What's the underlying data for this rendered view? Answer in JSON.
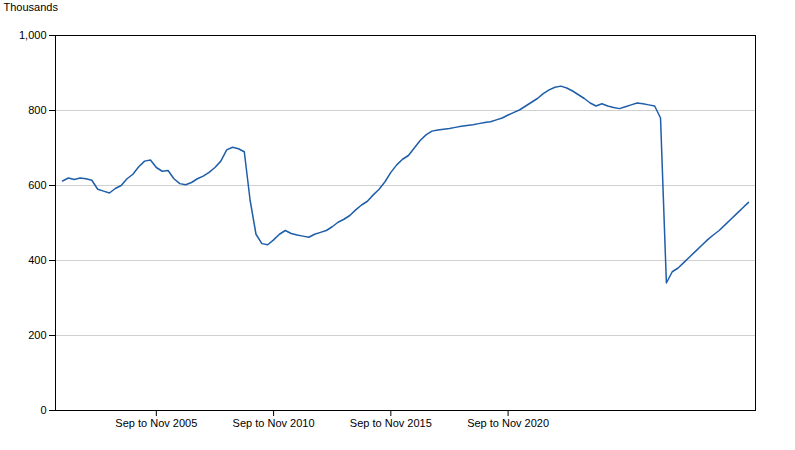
{
  "chart_data": {
    "type": "line",
    "ylabel": "Thousands",
    "color": "#1f5ea8",
    "grid": "y",
    "xlim": [
      2001.45,
      2031.3
    ],
    "xticks": [
      {
        "value": 2005.75,
        "label": "Sep to Nov 2005"
      },
      {
        "value": 2010.75,
        "label": "Sep to Nov 2010"
      },
      {
        "value": 2015.75,
        "label": "Sep to Nov 2015"
      },
      {
        "value": 2020.75,
        "label": "Sep to Nov 2020"
      }
    ],
    "ylim": [
      0,
      1000
    ],
    "yticks": [
      0,
      200,
      400,
      600,
      800,
      {
        "value": 1000,
        "label": "1,000"
      }
    ],
    "x": [
      2001.75,
      2002,
      2002.25,
      2002.5,
      2002.75,
      2003,
      2003.25,
      2003.5,
      2003.75,
      2004,
      2004.25,
      2004.5,
      2004.75,
      2005,
      2005.25,
      2005.5,
      2005.75,
      2006,
      2006.25,
      2006.5,
      2006.75,
      2007,
      2007.25,
      2007.5,
      2007.75,
      2008,
      2008.25,
      2008.5,
      2008.75,
      2009,
      2009.25,
      2009.5,
      2009.75,
      2010,
      2010.25,
      2010.5,
      2010.75,
      2011,
      2011.25,
      2011.5,
      2011.75,
      2012,
      2012.25,
      2012.5,
      2012.75,
      2013,
      2013.25,
      2013.5,
      2013.75,
      2014,
      2014.25,
      2014.5,
      2014.75,
      2015,
      2015.25,
      2015.5,
      2015.75,
      2016,
      2016.25,
      2016.5,
      2016.75,
      2017,
      2017.25,
      2017.5,
      2017.75,
      2018,
      2018.25,
      2018.5,
      2018.75,
      2019,
      2019.25,
      2019.5,
      2019.75,
      2020,
      2020.25,
      2020.5,
      2020.75,
      2021,
      2021.25,
      2021.5,
      2021.75,
      2022,
      2022.25,
      2022.5,
      2022.75,
      2023,
      2023.25,
      2023.5,
      2023.75,
      2024,
      2024.25,
      2024.5,
      2024.75,
      2025,
      2025.25,
      2025.5,
      2025.75,
      2026,
      2026.25,
      2026.5,
      2026.75,
      2027,
      2027.25,
      2027.5,
      2027.75,
      2028,
      2028.25,
      2028.5,
      2028.75,
      2029,
      2029.25,
      2029.5,
      2029.75,
      2030,
      2030.25,
      2030.5,
      2030.75,
      2031
    ],
    "values": [
      612,
      620,
      616,
      620,
      618,
      614,
      590,
      585,
      580,
      592,
      600,
      618,
      630,
      650,
      665,
      668,
      648,
      638,
      640,
      618,
      605,
      602,
      608,
      618,
      625,
      635,
      648,
      665,
      695,
      702,
      698,
      690,
      560,
      470,
      445,
      442,
      455,
      470,
      480,
      472,
      468,
      465,
      462,
      470,
      475,
      480,
      490,
      502,
      510,
      520,
      535,
      548,
      558,
      575,
      590,
      610,
      635,
      655,
      670,
      680,
      700,
      720,
      735,
      745,
      748,
      750,
      752,
      755,
      758,
      760,
      762,
      765,
      768,
      770,
      775,
      780,
      788,
      795,
      802,
      812,
      822,
      832,
      845,
      855,
      862,
      865,
      860,
      852,
      842,
      832,
      820,
      812,
      818,
      812,
      808,
      805,
      810,
      815,
      820,
      818,
      815,
      812,
      780,
      340,
      370,
      380,
      395,
      410,
      425,
      440,
      455,
      468,
      480,
      495,
      510,
      525,
      540,
      555
    ]
  }
}
